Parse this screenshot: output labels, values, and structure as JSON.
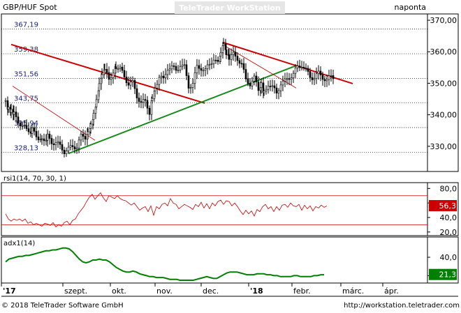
{
  "header": {
    "symbol": "GBP/HUF Spot",
    "watermark": "TeleTrader WorkStation",
    "period": "naponta"
  },
  "footer": {
    "copyright": "© 2018 TeleTrader Software GmbH",
    "url": "http://workstation.teletrader.com"
  },
  "colors": {
    "candle": "#000000",
    "downtrend": "#cc0000",
    "uptrend": "#1a8a1a",
    "thin_trend": "#cc0000",
    "rsi_line": "#cc0000",
    "adx_line": "#008000",
    "level_line": "#cccccc",
    "rsi_badge": "#cc0000",
    "adx_badge": "#008000"
  },
  "chart_data": [
    {
      "type": "candlestick",
      "title": "GBP/HUF Spot",
      "ylim": [
        322,
        372
      ],
      "y_ticks": [
        330,
        340,
        350,
        360,
        370
      ],
      "y_tick_labels": [
        "330,00",
        "340,00",
        "350,00",
        "360,00",
        "370,00"
      ],
      "levels": [
        {
          "label": "367,19",
          "value": 367.19
        },
        {
          "label": "359,38",
          "value": 359.38
        },
        {
          "label": "351,56",
          "value": 351.56
        },
        {
          "label": "343,75",
          "value": 343.75
        },
        {
          "label": "335,94",
          "value": 335.94
        },
        {
          "label": "328,13",
          "value": 328.13
        }
      ],
      "x_labels": [
        "'17",
        "szept.",
        "okt.",
        "nov.",
        "dec.",
        "'18",
        "febr.",
        "márc.",
        "ápr."
      ],
      "price_path": [
        [
          0,
          344.5
        ],
        [
          4,
          342
        ],
        [
          8,
          341
        ],
        [
          12,
          340
        ],
        [
          18,
          338
        ],
        [
          24,
          336.5
        ],
        [
          30,
          335
        ],
        [
          38,
          335
        ],
        [
          44,
          333.5
        ],
        [
          52,
          332
        ],
        [
          60,
          333
        ],
        [
          66,
          331.5
        ],
        [
          72,
          331
        ],
        [
          78,
          330
        ],
        [
          84,
          328.5
        ],
        [
          90,
          329
        ],
        [
          96,
          330
        ],
        [
          102,
          330
        ],
        [
          108,
          333
        ],
        [
          114,
          333
        ],
        [
          118,
          335
        ],
        [
          122,
          337
        ],
        [
          126,
          340
        ],
        [
          130,
          344
        ],
        [
          134,
          349
        ],
        [
          138,
          352
        ],
        [
          142,
          354
        ],
        [
          148,
          351
        ],
        [
          154,
          354
        ],
        [
          158,
          355.5
        ],
        [
          164,
          354.5
        ],
        [
          170,
          352
        ],
        [
          176,
          350
        ],
        [
          182,
          350
        ],
        [
          188,
          346
        ],
        [
          194,
          344
        ],
        [
          200,
          344
        ],
        [
          206,
          341
        ],
        [
          210,
          346
        ],
        [
          214,
          349
        ],
        [
          220,
          352
        ],
        [
          226,
          351
        ],
        [
          232,
          355
        ],
        [
          238,
          355
        ],
        [
          244,
          354
        ],
        [
          250,
          356
        ],
        [
          256,
          355
        ],
        [
          262,
          349
        ],
        [
          268,
          350
        ],
        [
          274,
          355
        ],
        [
          280,
          355
        ],
        [
          286,
          354
        ],
        [
          292,
          356
        ],
        [
          298,
          358
        ],
        [
          304,
          356
        ],
        [
          308,
          359
        ],
        [
          312,
          362
        ],
        [
          316,
          359
        ],
        [
          320,
          358
        ],
        [
          326,
          359
        ],
        [
          332,
          358
        ],
        [
          338,
          356
        ],
        [
          344,
          351
        ],
        [
          350,
          350
        ],
        [
          356,
          351.5
        ],
        [
          362,
          348
        ],
        [
          366,
          350
        ],
        [
          370,
          347
        ],
        [
          376,
          350
        ],
        [
          382,
          348.5
        ],
        [
          388,
          347
        ],
        [
          394,
          350
        ],
        [
          400,
          350.5
        ],
        [
          406,
          352
        ],
        [
          412,
          353
        ],
        [
          418,
          355
        ],
        [
          424,
          356
        ],
        [
          430,
          354
        ],
        [
          436,
          352
        ],
        [
          442,
          352
        ],
        [
          448,
          353
        ],
        [
          454,
          352
        ],
        [
          460,
          351
        ],
        [
          466,
          352
        ],
        [
          470,
          352
        ]
      ],
      "trendlines": [
        {
          "kind": "downtrend",
          "points": [
            [
              8,
              362.3
            ],
            [
              285,
              343.7
            ]
          ]
        },
        {
          "kind": "uptrend",
          "points": [
            [
              90,
              327.7
            ],
            [
              415,
              355.5
            ]
          ]
        },
        {
          "kind": "downtrend",
          "points": [
            [
              312,
              362.9
            ],
            [
              497,
              349.9
            ]
          ]
        },
        {
          "kind": "thin",
          "points": [
            [
              10,
              349.1
            ],
            [
              128,
              331.9
            ]
          ]
        },
        {
          "kind": "thin",
          "points": [
            [
              316,
              361.6
            ],
            [
              416,
              348.5
            ]
          ]
        }
      ]
    },
    {
      "type": "line",
      "title": "rsi1(14, 70, 30, 1)",
      "ylim": [
        15,
        88
      ],
      "y_ticks": [
        20,
        40,
        60,
        80
      ],
      "y_tick_labels": [
        "20,0",
        "40,0",
        "60,0",
        "80,0"
      ],
      "levels": [
        70,
        30
      ],
      "last_value": "56,3",
      "values": [
        45,
        38,
        35,
        38,
        36,
        38,
        35,
        38,
        32,
        34,
        30,
        32,
        30,
        28,
        32,
        31,
        29,
        33,
        27,
        30,
        28,
        33,
        35,
        30,
        36,
        38,
        45,
        50,
        55,
        62,
        68,
        72,
        65,
        70,
        74,
        67,
        62,
        70,
        68,
        66,
        70,
        66,
        64,
        63,
        60,
        57,
        60,
        55,
        50,
        53,
        55,
        48,
        56,
        43,
        55,
        52,
        58,
        60,
        56,
        66,
        60,
        58,
        52,
        55,
        58,
        56,
        54,
        51,
        58,
        55,
        61,
        53,
        59,
        52,
        60,
        56,
        62,
        64,
        58,
        63,
        62,
        56,
        60,
        55,
        49,
        44,
        50,
        45,
        49,
        42,
        51,
        48,
        55,
        58,
        52,
        55,
        48,
        55,
        50,
        57,
        58,
        54,
        60,
        56,
        55,
        58,
        50,
        57,
        52,
        56,
        49,
        55,
        53,
        57,
        54,
        56
      ]
    },
    {
      "type": "line",
      "title": "adx1(14)",
      "ylim": [
        12,
        62
      ],
      "y_ticks": [
        20,
        40
      ],
      "y_tick_labels": [
        "20,0",
        "40,0"
      ],
      "last_value": "21,3",
      "values": [
        35,
        38,
        39,
        40,
        41,
        41,
        42,
        42,
        43,
        44,
        45,
        46,
        47,
        47,
        48,
        48,
        49,
        50,
        50,
        49,
        46,
        42,
        38,
        35,
        34,
        35,
        37,
        37,
        38,
        37,
        37,
        35,
        32,
        29,
        27,
        25,
        24,
        24,
        25,
        24,
        22,
        21,
        20,
        19,
        19,
        18,
        18,
        18,
        17,
        16,
        16,
        16,
        15,
        15,
        15,
        15,
        15,
        16,
        17,
        18,
        19,
        18,
        17,
        17,
        19,
        21,
        23,
        24,
        24,
        24,
        23,
        22,
        21,
        21,
        21,
        22,
        22,
        22,
        21,
        21,
        20,
        20,
        19,
        19,
        19,
        19,
        20,
        20,
        19,
        19,
        19,
        19,
        20,
        20,
        21,
        21
      ]
    }
  ]
}
